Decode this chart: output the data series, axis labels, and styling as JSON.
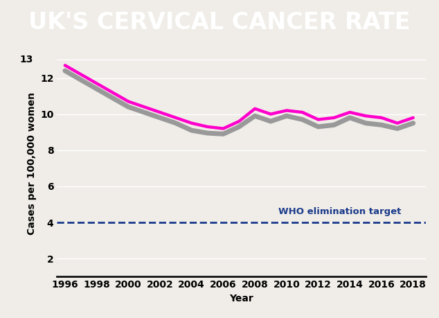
{
  "title": "UK'S CERVICAL CANCER RATE",
  "xlabel": "Year",
  "ylabel": "Cases per 100,000 women",
  "title_color": "#ffffff",
  "title_bg_color": "#00b0c8",
  "fig_bg_color": "#f0ede8",
  "years": [
    1996,
    1997,
    1998,
    1999,
    2000,
    2001,
    2002,
    2003,
    2004,
    2005,
    2006,
    2007,
    2008,
    2009,
    2010,
    2011,
    2012,
    2013,
    2014,
    2015,
    2016,
    2017,
    2018
  ],
  "pink_line": [
    12.7,
    12.2,
    11.7,
    11.2,
    10.7,
    10.4,
    10.1,
    9.8,
    9.5,
    9.3,
    9.2,
    9.6,
    10.3,
    10.0,
    10.2,
    10.1,
    9.7,
    9.8,
    10.1,
    9.9,
    9.8,
    9.5,
    9.8
  ],
  "grey_line": [
    12.4,
    11.9,
    11.4,
    10.9,
    10.4,
    10.1,
    9.8,
    9.5,
    9.1,
    8.95,
    8.9,
    9.3,
    9.9,
    9.6,
    9.9,
    9.7,
    9.3,
    9.4,
    9.8,
    9.5,
    9.4,
    9.2,
    9.5
  ],
  "pink_color": "#ff00cc",
  "grey_color": "#999999",
  "who_line_y": 4.0,
  "who_line_color": "#1a3a8a",
  "who_label": "WHO elimination target",
  "who_label_color": "#1a3a8a",
  "ylim": [
    1,
    13.5
  ],
  "yticks": [
    2,
    4,
    6,
    8,
    10,
    12,
    13
  ],
  "ytick_labels": [
    "2",
    "4",
    "6",
    "8",
    "10",
    "12",
    "13"
  ],
  "xticks": [
    1996,
    1998,
    2000,
    2002,
    2004,
    2006,
    2008,
    2010,
    2012,
    2014,
    2016,
    2018
  ],
  "grid_color": "#ffffff",
  "axis_label_color": "#000000",
  "tick_label_fontsize": 10,
  "axis_label_fontsize": 10,
  "title_fontsize": 24
}
